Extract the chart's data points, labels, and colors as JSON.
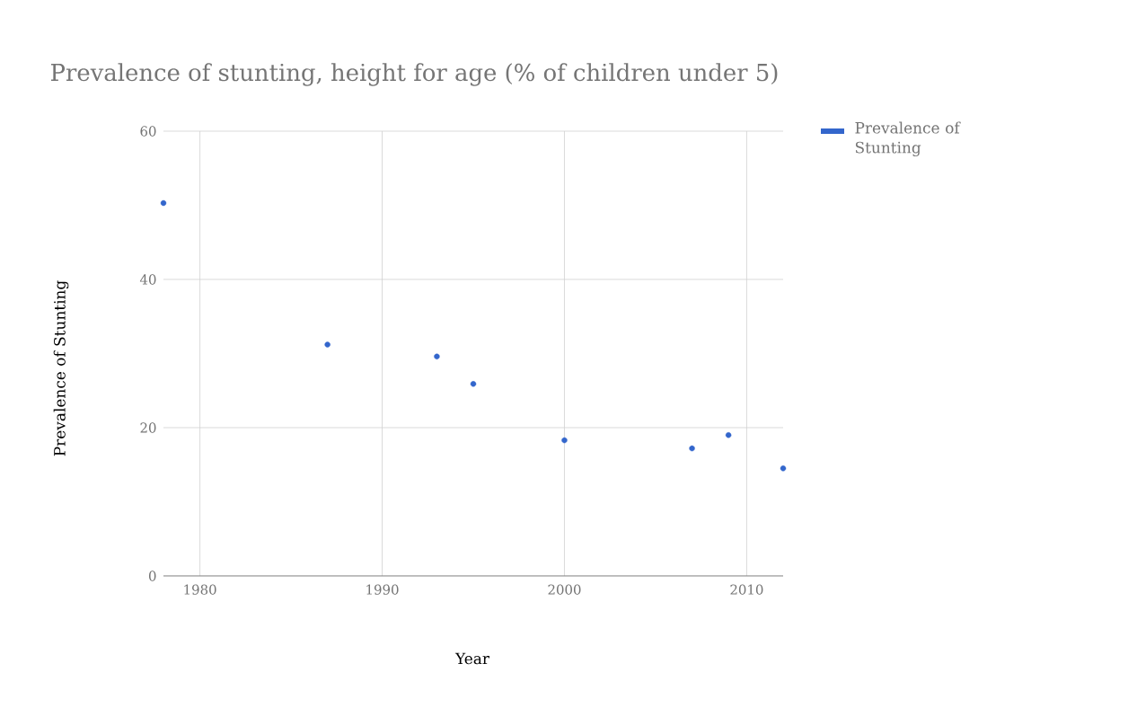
{
  "chart_data": {
    "type": "scatter",
    "title": "Prevalence of stunting, height for age (% of children under 5)",
    "xlabel": "Year",
    "ylabel": "Prevalence of Stunting",
    "x": [
      1978,
      1987,
      1993,
      1995,
      2000,
      2007,
      2009,
      2012
    ],
    "series": [
      {
        "name": "Prevalence of Stunting",
        "color": "#3366cc",
        "values": [
          50.3,
          31.2,
          29.6,
          25.9,
          18.3,
          17.2,
          19.0,
          14.5
        ]
      }
    ],
    "xlim": [
      1978,
      2012
    ],
    "ylim": [
      0,
      60
    ],
    "xticks": [
      1980,
      1990,
      2000,
      2010
    ],
    "yticks": [
      0,
      20,
      40,
      60
    ],
    "grid": true,
    "legend": "top right",
    "marker": "circle"
  }
}
